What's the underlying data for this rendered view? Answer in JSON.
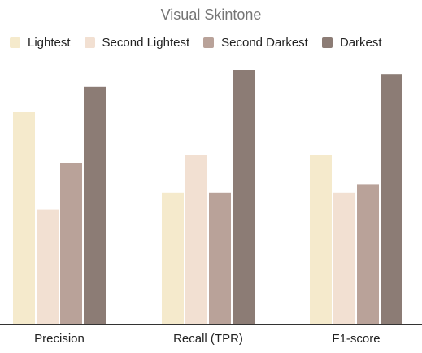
{
  "chart_data": {
    "type": "bar",
    "title": "Visual Skintone",
    "categories": [
      "Precision",
      "Recall (TPR)",
      "F1-score"
    ],
    "series": [
      {
        "name": "Lightest",
        "color": "#F5EACC",
        "values": [
          0.9,
          0.71,
          0.8
        ]
      },
      {
        "name": "Second Lightest",
        "color": "#F2E0D2",
        "values": [
          0.67,
          0.8,
          0.71
        ]
      },
      {
        "name": "Second Darkest",
        "color": "#B9A299",
        "values": [
          0.78,
          0.71,
          0.73
        ]
      },
      {
        "name": "Darkest",
        "color": "#8C7C75",
        "values": [
          0.96,
          1.0,
          0.99
        ]
      }
    ],
    "xlabel": "",
    "ylabel": "",
    "ylim": [
      0.4,
      1.0
    ],
    "grid": false,
    "legend": "top-left"
  }
}
